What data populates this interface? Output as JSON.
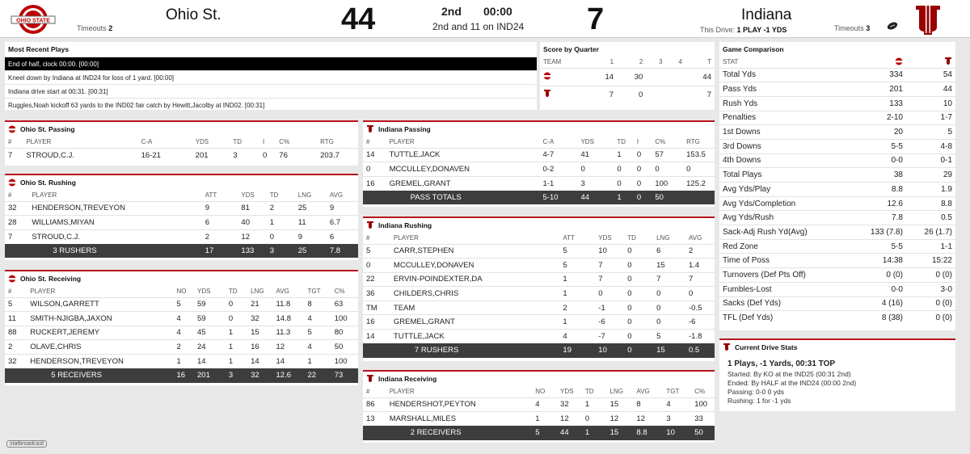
{
  "header": {
    "home": {
      "name": "Ohio St.",
      "timeouts_label": "Timeouts",
      "timeouts": "2",
      "score": "44"
    },
    "away": {
      "name": "Indiana",
      "timeouts_label": "Timeouts",
      "timeouts": "3",
      "score": "7",
      "drive_label": "This Drive:",
      "drive": "1 PLAY -1 YDS"
    },
    "period": "2nd",
    "clock": "00:00",
    "situation": "2nd and 11 on IND24"
  },
  "recent_plays": {
    "title": "Most Recent Plays",
    "items": [
      "End of half, clock 00:00. [00:00]",
      "Kneel down by Indiana at IND24 for loss of 1 yard. [00:00]",
      "Indiana drive start at 00:31. [00:31]",
      "Ruggles,Noah kickoff 63 yards to the IND02 fair catch by Hewitt,Jacolby at IND02. [00:31]"
    ]
  },
  "score_by_quarter": {
    "title": "Score by Quarter",
    "cols": [
      "TEAM",
      "1",
      "2",
      "3",
      "4",
      "T"
    ],
    "rows": [
      [
        "",
        "14",
        "30",
        "",
        "",
        "44"
      ],
      [
        "",
        "7",
        "0",
        "",
        "",
        "7"
      ]
    ]
  },
  "game_comparison": {
    "title": "Game Comparison",
    "stat_label": "STAT",
    "rows": [
      [
        "Total Yds",
        "334",
        "54"
      ],
      [
        "Pass Yds",
        "201",
        "44"
      ],
      [
        "Rush Yds",
        "133",
        "10"
      ],
      [
        "Penalties",
        "2-10",
        "1-7"
      ],
      [
        "1st Downs",
        "20",
        "5"
      ],
      [
        "3rd Downs",
        "5-5",
        "4-8"
      ],
      [
        "4th Downs",
        "0-0",
        "0-1"
      ],
      [
        "Total Plays",
        "38",
        "29"
      ],
      [
        "Avg Yds/Play",
        "8.8",
        "1.9"
      ],
      [
        "Avg Yds/Completion",
        "12.6",
        "8.8"
      ],
      [
        "Avg Yds/Rush",
        "7.8",
        "0.5"
      ],
      [
        "Sack-Adj Rush Yd(Avg)",
        "133 (7.8)",
        "26 (1.7)"
      ],
      [
        "Red Zone",
        "5-5",
        "1-1"
      ],
      [
        "Time of Poss",
        "14:38",
        "15:22"
      ],
      [
        "Turnovers (Def Pts Off)",
        "0 (0)",
        "0 (0)"
      ],
      [
        "Fumbles-Lost",
        "0-0",
        "3-0"
      ],
      [
        "Sacks (Def Yds)",
        "4 (16)",
        "0 (0)"
      ],
      [
        "TFL (Def Yds)",
        "8 (38)",
        "0 (0)"
      ]
    ]
  },
  "current_drive": {
    "title": "Current Drive Stats",
    "headline": "1 Plays, -1 Yards, 00:31 TOP",
    "lines": [
      [
        "Started:",
        "By KO at the IND25 (00:31 2nd)"
      ],
      [
        "Ended:",
        "By HALF at the IND24 (00:00 2nd)"
      ],
      [
        "Passing:",
        "0-0 0 yds"
      ],
      [
        "Rushing:",
        "1 for -1 yds"
      ]
    ]
  },
  "osu_passing": {
    "title": "Ohio St. Passing",
    "cols": [
      "#",
      "PLAYER",
      "C-A",
      "YDS",
      "TD",
      "I",
      "C%",
      "RTG"
    ],
    "rows": [
      [
        "7",
        "STROUD,C.J.",
        "16-21",
        "201",
        "3",
        "0",
        "76",
        "203.7"
      ]
    ]
  },
  "osu_rushing": {
    "title": "Ohio St. Rushing",
    "cols": [
      "#",
      "PLAYER",
      "ATT",
      "YDS",
      "TD",
      "LNG",
      "AVG"
    ],
    "rows": [
      [
        "32",
        "HENDERSON,TREVEYON",
        "9",
        "81",
        "2",
        "25",
        "9"
      ],
      [
        "28",
        "WILLIAMS,MIYAN",
        "6",
        "40",
        "1",
        "11",
        "6.7"
      ],
      [
        "7",
        "STROUD,C.J.",
        "2",
        "12",
        "0",
        "9",
        "6"
      ]
    ],
    "total": [
      "",
      "3 RUSHERS",
      "17",
      "133",
      "3",
      "25",
      "7.8"
    ]
  },
  "osu_receiving": {
    "title": "Ohio St. Receiving",
    "cols": [
      "#",
      "PLAYER",
      "NO",
      "YDS",
      "TD",
      "LNG",
      "AVG",
      "TGT",
      "C%"
    ],
    "rows": [
      [
        "5",
        "WILSON,GARRETT",
        "5",
        "59",
        "0",
        "21",
        "11.8",
        "8",
        "63"
      ],
      [
        "11",
        "SMITH-NJIGBA,JAXON",
        "4",
        "59",
        "0",
        "32",
        "14.8",
        "4",
        "100"
      ],
      [
        "88",
        "RUCKERT,JEREMY",
        "4",
        "45",
        "1",
        "15",
        "11.3",
        "5",
        "80"
      ],
      [
        "2",
        "OLAVE,CHRIS",
        "2",
        "24",
        "1",
        "16",
        "12",
        "4",
        "50"
      ],
      [
        "32",
        "HENDERSON,TREVEYON",
        "1",
        "14",
        "1",
        "14",
        "14",
        "1",
        "100"
      ]
    ],
    "total": [
      "",
      "5 RECEIVERS",
      "16",
      "201",
      "3",
      "32",
      "12.6",
      "22",
      "73"
    ]
  },
  "iu_passing": {
    "title": "Indiana Passing",
    "cols": [
      "#",
      "PLAYER",
      "C-A",
      "YDS",
      "TD",
      "I",
      "C%",
      "RTG"
    ],
    "rows": [
      [
        "14",
        "TUTTLE,JACK",
        "4-7",
        "41",
        "1",
        "0",
        "57",
        "153.5"
      ],
      [
        "0",
        "MCCULLEY,DONAVEN",
        "0-2",
        "0",
        "0",
        "0",
        "0",
        "0"
      ],
      [
        "16",
        "GREMEL,GRANT",
        "1-1",
        "3",
        "0",
        "0",
        "100",
        "125.2"
      ]
    ],
    "total": [
      "",
      "PASS TOTALS",
      "5-10",
      "44",
      "1",
      "0",
      "50",
      ""
    ]
  },
  "iu_rushing": {
    "title": "Indiana Rushing",
    "cols": [
      "#",
      "PLAYER",
      "ATT",
      "YDS",
      "TD",
      "LNG",
      "AVG"
    ],
    "rows": [
      [
        "5",
        "CARR,STEPHEN",
        "5",
        "10",
        "0",
        "6",
        "2"
      ],
      [
        "0",
        "MCCULLEY,DONAVEN",
        "5",
        "7",
        "0",
        "15",
        "1.4"
      ],
      [
        "22",
        "ERVIN-POINDEXTER,DA",
        "1",
        "7",
        "0",
        "7",
        "7"
      ],
      [
        "36",
        "CHILDERS,CHRIS",
        "1",
        "0",
        "0",
        "0",
        "0"
      ],
      [
        "TM",
        "TEAM",
        "2",
        "-1",
        "0",
        "0",
        "-0.5"
      ],
      [
        "16",
        "GREMEL,GRANT",
        "1",
        "-6",
        "0",
        "0",
        "-6"
      ],
      [
        "14",
        "TUTTLE,JACK",
        "4",
        "-7",
        "0",
        "5",
        "-1.8"
      ]
    ],
    "total": [
      "",
      "7 RUSHERS",
      "19",
      "10",
      "0",
      "15",
      "0.5"
    ]
  },
  "iu_receiving": {
    "title": "Indiana Receiving",
    "cols": [
      "#",
      "PLAYER",
      "NO",
      "YDS",
      "TD",
      "LNG",
      "AVG",
      "TGT",
      "C%"
    ],
    "rows": [
      [
        "86",
        "HENDERSHOT,PEYTON",
        "4",
        "32",
        "1",
        "15",
        "8",
        "4",
        "100"
      ],
      [
        "13",
        "MARSHALL,MILES",
        "1",
        "12",
        "0",
        "12",
        "12",
        "3",
        "33"
      ]
    ],
    "total": [
      "",
      "2 RECEIVERS",
      "5",
      "44",
      "1",
      "15",
      "8.8",
      "10",
      "50"
    ]
  },
  "footer": {
    "brand": "statbroadcast"
  },
  "colors": {
    "osu": "#bb0000",
    "iu": "#990000",
    "total_row": "#3d3d3d"
  }
}
